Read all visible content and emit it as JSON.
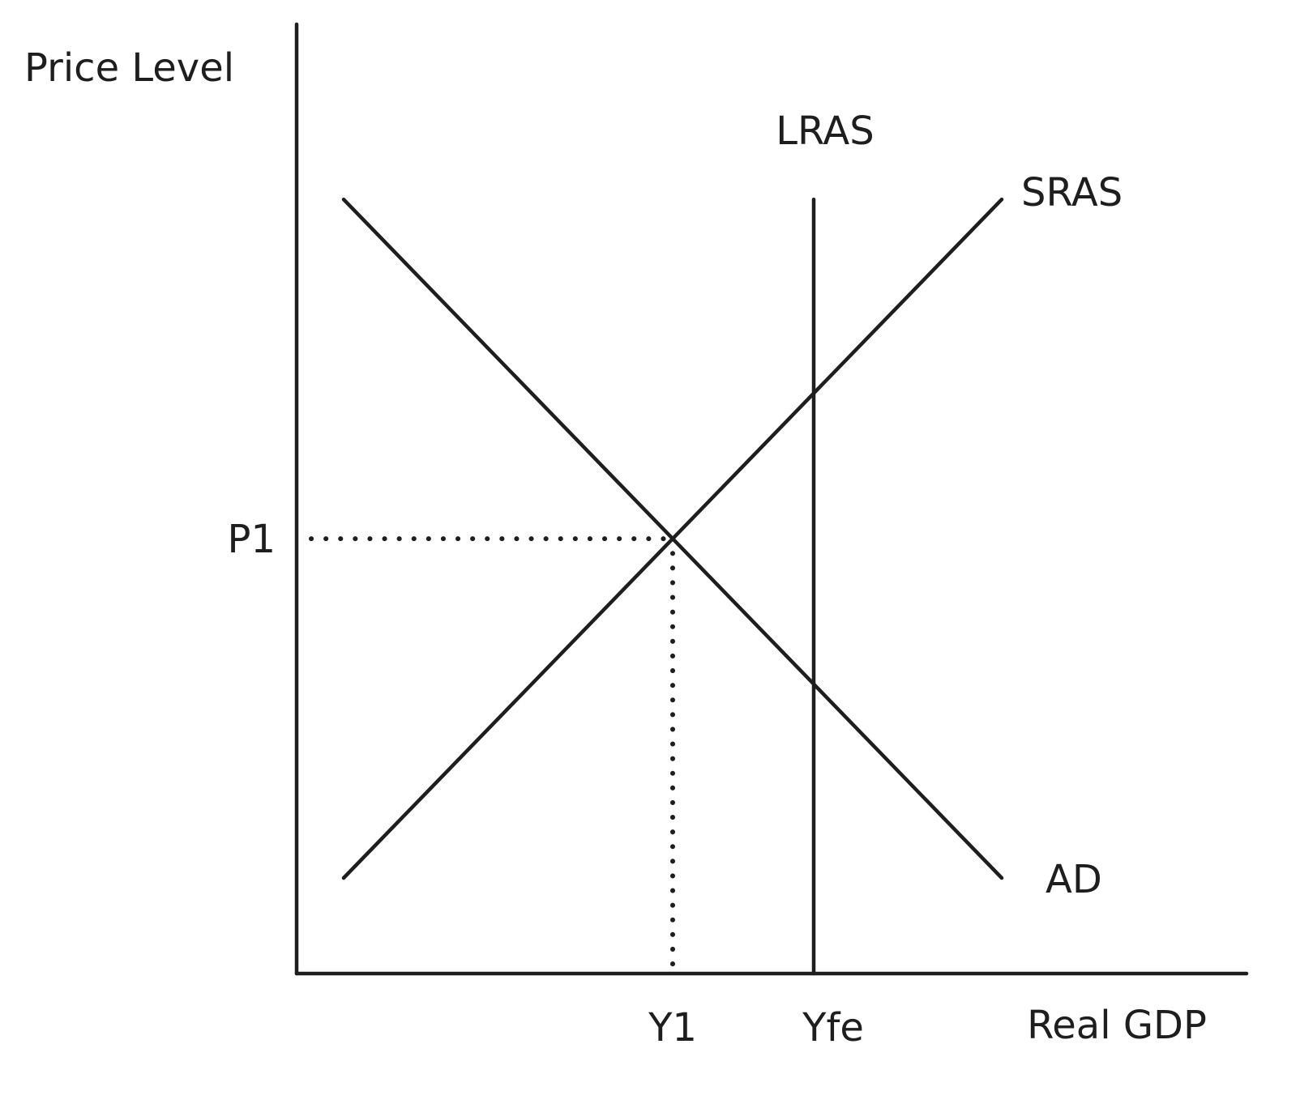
{
  "chart_data": {
    "type": "line",
    "title": "",
    "xlabel": "Real GDP",
    "ylabel": "Price Level",
    "xlim": [
      0,
      100
    ],
    "ylim": [
      0,
      100
    ],
    "grid": false,
    "series": [
      {
        "name": "AD",
        "points": [
          [
            5,
            81
          ],
          [
            75,
            10
          ]
        ]
      },
      {
        "name": "SRAS",
        "points": [
          [
            5,
            10
          ],
          [
            75,
            81
          ]
        ]
      },
      {
        "name": "LRAS",
        "points": [
          [
            55,
            81
          ],
          [
            55,
            0
          ]
        ]
      }
    ],
    "equilibrium": {
      "x": 40,
      "y": 45.5
    },
    "x_ticks": [
      {
        "label": "Y1",
        "value": 40
      },
      {
        "label": "Yfe",
        "value": 55
      }
    ],
    "y_ticks": [
      {
        "label": "P1",
        "value": 45.5
      }
    ],
    "curve_labels": {
      "ad": "AD",
      "sras": "SRAS",
      "lras": "LRAS"
    }
  }
}
